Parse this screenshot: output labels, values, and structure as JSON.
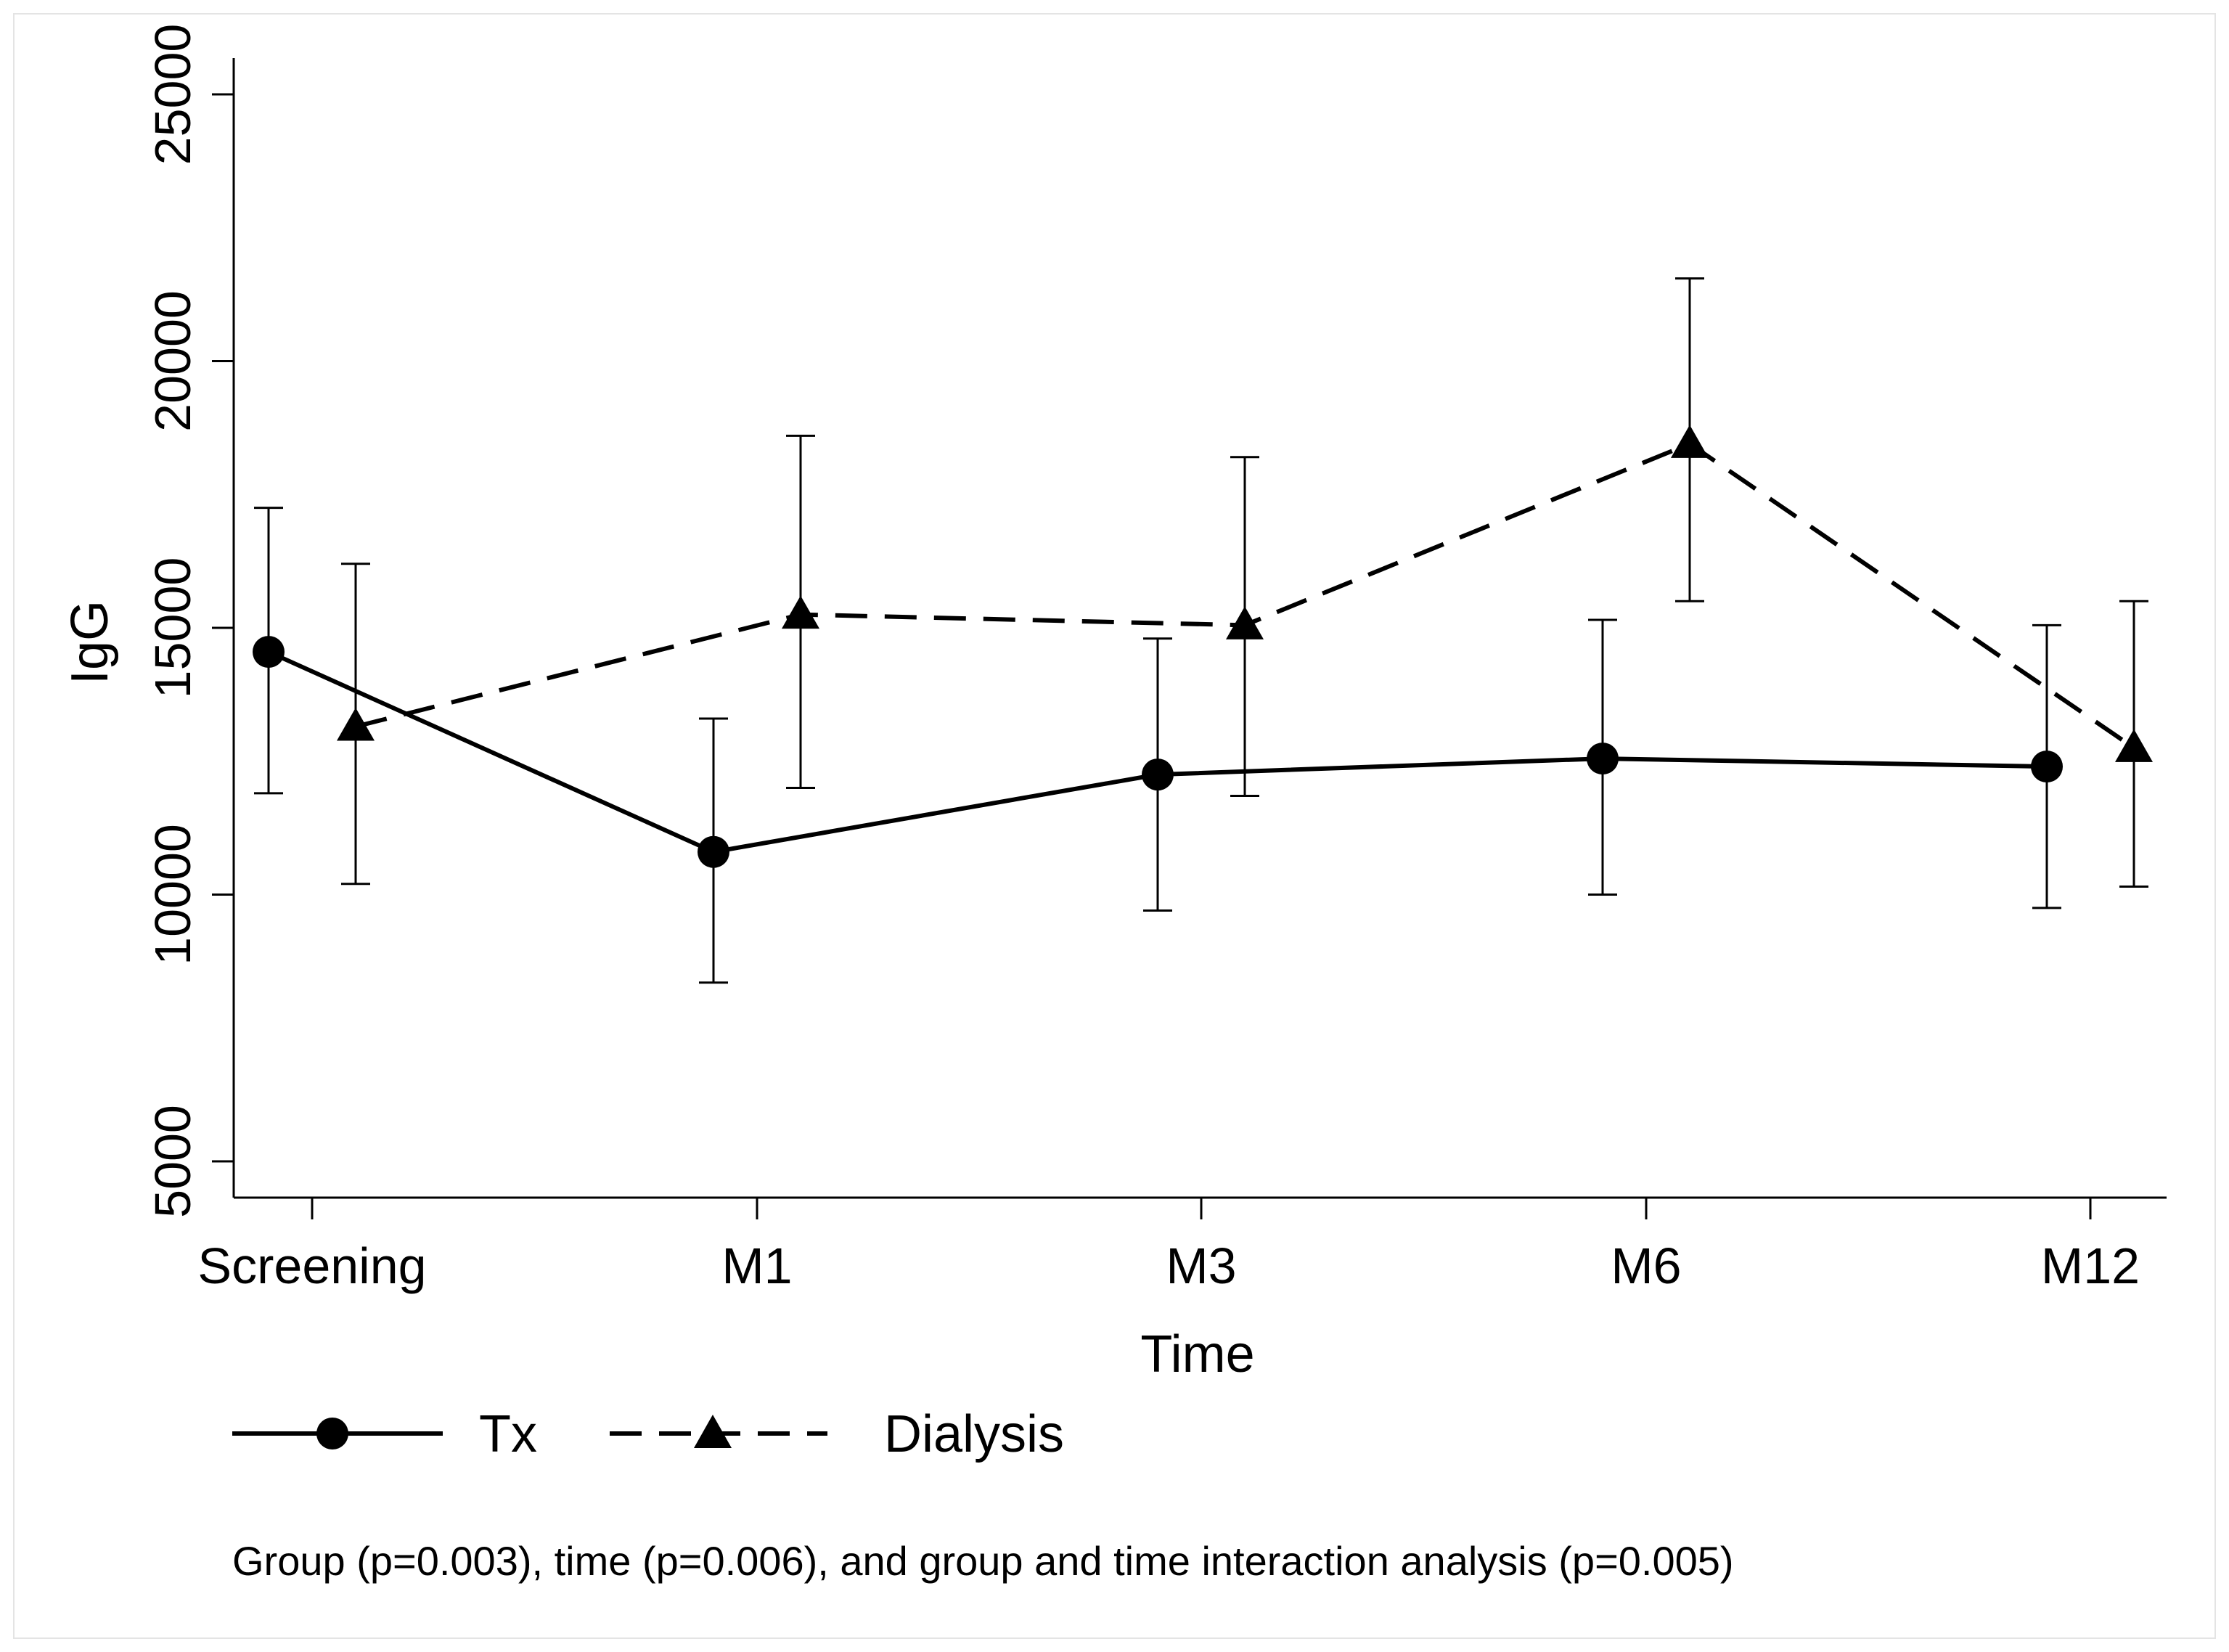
{
  "chart_data": {
    "type": "line",
    "title": "",
    "xlabel": "Time",
    "ylabel": "IgG",
    "categories": [
      "Screening",
      "M1",
      "M3",
      "M6",
      "M12"
    ],
    "ylim": [
      5000,
      25000
    ],
    "yticks": [
      5000,
      10000,
      15000,
      20000,
      25000
    ],
    "grid": false,
    "legend_position": "bottom",
    "series": [
      {
        "name": "Tx",
        "marker": "circle",
        "line_style": "solid",
        "values": [
          14550,
          10800,
          12250,
          12550,
          12400
        ],
        "ci_lower": [
          11900,
          8350,
          9700,
          10000,
          9750
        ],
        "ci_upper": [
          17250,
          13300,
          14800,
          15150,
          15050
        ]
      },
      {
        "name": "Dialysis",
        "marker": "triangle",
        "line_style": "dashed",
        "values": [
          13150,
          15250,
          15050,
          18450,
          12750
        ],
        "ci_lower": [
          10200,
          12000,
          11850,
          15500,
          10150
        ],
        "ci_upper": [
          16200,
          18600,
          18200,
          21550,
          15500
        ]
      }
    ],
    "note": "Group (p=0.003), time (p=0.006), and group and time interaction analysis (p=0.005)"
  }
}
